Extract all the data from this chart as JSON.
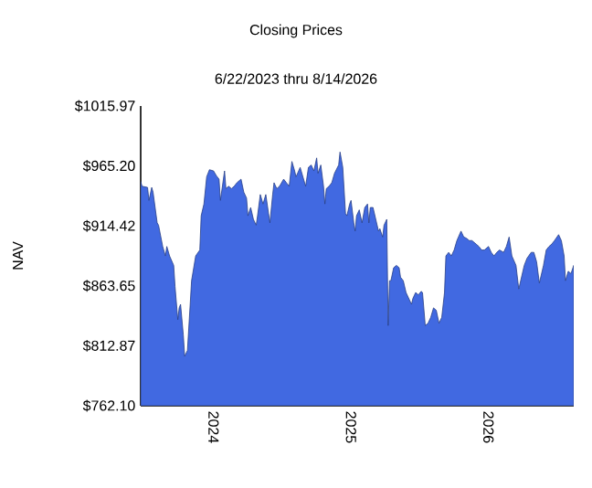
{
  "chart_data": {
    "type": "area",
    "title": "Closing Prices",
    "subtitle": "6/22/2023 thru 8/14/2026",
    "ylabel": "NAV",
    "xlim": [
      2023.47,
      2026.62
    ],
    "xticks": [
      2024,
      2025,
      2026
    ],
    "ylim": [
      762.1,
      1015.97
    ],
    "yticks": [
      {
        "value": 762.1,
        "label": "$762.10"
      },
      {
        "value": 812.87,
        "label": "$812.87"
      },
      {
        "value": 863.65,
        "label": "$863.65"
      },
      {
        "value": 914.42,
        "label": "$914.42"
      },
      {
        "value": 965.2,
        "label": "$965.20"
      },
      {
        "value": 1015.97,
        "label": "$1015.97"
      }
    ],
    "x": [
      2023.47,
      2023.48,
      2023.52,
      2023.53,
      2023.55,
      2023.56,
      2023.59,
      2023.6,
      2023.63,
      2023.65,
      2023.66,
      2023.68,
      2023.71,
      2023.72,
      2023.74,
      2023.75,
      2023.76,
      2023.78,
      2023.79,
      2023.81,
      2023.83,
      2023.84,
      2023.87,
      2023.9,
      2023.91,
      2023.93,
      2023.95,
      2023.97,
      2024.0,
      2024.02,
      2024.04,
      2024.05,
      2024.08,
      2024.09,
      2024.11,
      2024.13,
      2024.15,
      2024.17,
      2024.2,
      2024.22,
      2024.24,
      2024.25,
      2024.27,
      2024.29,
      2024.31,
      2024.32,
      2024.34,
      2024.36,
      2024.38,
      2024.4,
      2024.41,
      2024.43,
      2024.44,
      2024.46,
      2024.48,
      2024.51,
      2024.53,
      2024.55,
      2024.57,
      2024.59,
      2024.6,
      2024.63,
      2024.65,
      2024.67,
      2024.69,
      2024.71,
      2024.73,
      2024.75,
      2024.76,
      2024.78,
      2024.8,
      2024.81,
      2024.82,
      2024.84,
      2024.86,
      2024.88,
      2024.91,
      2024.92,
      2024.94,
      2024.96,
      2024.97,
      2024.99,
      2025.0,
      2025.02,
      2025.03,
      2025.04,
      2025.06,
      2025.08,
      2025.1,
      2025.12,
      2025.13,
      2025.14,
      2025.16,
      2025.18,
      2025.2,
      2025.21,
      2025.23,
      2025.24,
      2025.26,
      2025.27,
      2025.28,
      2025.29,
      2025.31,
      2025.33,
      2025.35,
      2025.36,
      2025.38,
      2025.4,
      2025.42,
      2025.44,
      2025.45,
      2025.47,
      2025.49,
      2025.51,
      2025.52,
      2025.54,
      2025.56,
      2025.58,
      2025.6,
      2025.62,
      2025.64,
      2025.66,
      2025.68,
      2025.69,
      2025.71,
      2025.73,
      2025.75,
      2025.77,
      2025.8,
      2025.82,
      2025.84,
      2025.86,
      2025.88,
      2025.91,
      2025.93,
      2025.95,
      2025.97,
      2026.0,
      2026.02,
      2026.04,
      2026.06,
      2026.08,
      2026.11,
      2026.13,
      2026.15,
      2026.17,
      2026.2,
      2026.22,
      2026.24,
      2026.26,
      2026.28,
      2026.31,
      2026.33,
      2026.35,
      2026.37,
      2026.4,
      2026.42,
      2026.44,
      2026.46,
      2026.48,
      2026.51,
      2026.53,
      2026.55,
      2026.56,
      2026.58,
      2026.6,
      2026.62
    ],
    "series": [
      {
        "color": "#4169e1",
        "values": [
          952,
          948,
          947,
          936,
          947,
          943,
          917,
          915,
          897,
          889,
          897,
          889,
          881,
          863,
          835,
          845,
          848,
          822,
          804,
          809,
          848,
          868,
          889,
          894,
          923,
          933,
          956,
          962,
          961,
          957,
          954,
          936,
          961,
          946,
          948,
          946,
          948,
          951,
          954,
          943,
          938,
          923,
          930,
          920,
          915,
          923,
          941,
          933,
          941,
          925,
          917,
          941,
          951,
          946,
          948,
          954,
          951,
          948,
          969,
          961,
          956,
          964,
          956,
          948,
          964,
          966,
          961,
          972,
          959,
          966,
          948,
          933,
          946,
          948,
          951,
          959,
          966,
          977,
          964,
          925,
          923,
          933,
          936,
          917,
          910,
          923,
          928,
          917,
          930,
          933,
          917,
          930,
          930,
          920,
          910,
          912,
          905,
          915,
          920,
          830,
          868,
          868,
          879,
          881,
          879,
          871,
          868,
          858,
          853,
          848,
          853,
          858,
          856,
          859,
          858,
          830,
          832,
          837,
          845,
          843,
          832,
          837,
          858,
          889,
          892,
          889,
          894,
          902,
          910,
          905,
          904,
          902,
          902,
          899,
          897,
          894,
          894,
          897,
          892,
          889,
          892,
          894,
          892,
          897,
          905,
          889,
          881,
          861,
          871,
          881,
          887,
          892,
          892,
          884,
          866,
          881,
          894,
          897,
          899,
          902,
          907,
          902,
          889,
          868,
          876,
          874,
          881
        ]
      }
    ]
  }
}
